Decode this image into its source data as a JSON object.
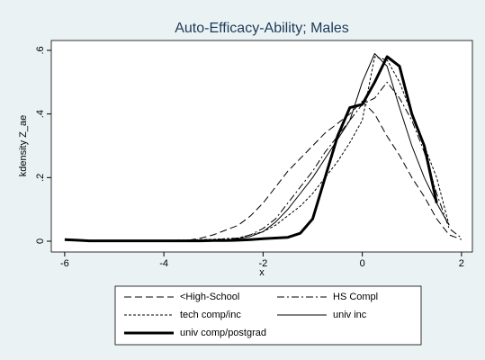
{
  "chart_data": {
    "type": "line",
    "title": "Auto-Efficacy-Ability; Males",
    "x_label": "x",
    "y_label": "kdensity Z_ae",
    "x": [
      -6,
      -5.75,
      -5.5,
      -5.25,
      -5,
      -4.75,
      -4.5,
      -4.25,
      -4,
      -3.75,
      -3.5,
      -3.25,
      -3,
      -2.75,
      -2.5,
      -2.25,
      -2,
      -1.75,
      -1.5,
      -1.25,
      -1,
      -0.75,
      -0.5,
      -0.25,
      0,
      0.25,
      0.5,
      0.75,
      1,
      1.25,
      1.5,
      1.75,
      2
    ],
    "series": [
      {
        "name": "<High-School",
        "color": "#000000",
        "dash": "8 4",
        "width": 1,
        "values": [
          null,
          null,
          null,
          null,
          null,
          null,
          null,
          null,
          null,
          null,
          0.003,
          0.01,
          0.02,
          0.035,
          0.05,
          0.08,
          0.12,
          0.17,
          0.22,
          0.26,
          0.3,
          0.34,
          0.37,
          0.4,
          0.44,
          0.4,
          0.33,
          0.27,
          0.2,
          0.14,
          0.07,
          0.02,
          0.005
        ]
      },
      {
        "name": "HS Compl",
        "color": "#000000",
        "dash": "8 3 2 3",
        "width": 1,
        "values": [
          null,
          null,
          null,
          null,
          null,
          null,
          null,
          null,
          null,
          null,
          0.003,
          0.004,
          0.005,
          0.007,
          0.01,
          0.02,
          0.04,
          0.07,
          0.12,
          0.17,
          0.22,
          0.28,
          0.33,
          0.38,
          0.43,
          0.45,
          0.5,
          0.45,
          0.38,
          0.28,
          0.15,
          0.04,
          0.01
        ]
      },
      {
        "name": "tech comp/inc",
        "color": "#000000",
        "dash": "3 2",
        "width": 1,
        "values": [
          null,
          null,
          null,
          null,
          null,
          null,
          null,
          null,
          0.002,
          0.003,
          0.004,
          0.005,
          0.006,
          0.008,
          0.01,
          0.02,
          0.03,
          0.05,
          0.08,
          0.11,
          0.15,
          0.2,
          0.25,
          0.31,
          0.38,
          0.58,
          0.57,
          0.5,
          0.4,
          0.3,
          0.2,
          0.05,
          null
        ]
      },
      {
        "name": "univ inc",
        "color": "#000000",
        "dash": "none",
        "width": 1,
        "values": [
          null,
          null,
          null,
          null,
          null,
          null,
          null,
          null,
          null,
          null,
          null,
          null,
          0.002,
          0.004,
          0.008,
          0.015,
          0.03,
          0.06,
          0.1,
          0.15,
          0.2,
          0.26,
          0.32,
          0.38,
          0.5,
          0.59,
          0.55,
          0.42,
          0.3,
          0.2,
          0.12,
          0.05,
          null
        ]
      },
      {
        "name": "univ comp/postgrad",
        "color": "#000000",
        "dash": "none",
        "width": 3,
        "values": [
          0.005,
          0.003,
          0.001,
          0.001,
          0.001,
          0.001,
          0.001,
          0.001,
          0.001,
          0.001,
          0.001,
          0.001,
          0.002,
          0.002,
          0.003,
          0.005,
          0.008,
          0.01,
          0.012,
          0.025,
          0.07,
          0.2,
          0.33,
          0.42,
          0.43,
          0.5,
          0.58,
          0.55,
          0.4,
          0.3,
          0.12,
          null,
          null
        ]
      }
    ],
    "xlim": [
      -6.27,
      2.22
    ],
    "ylim": [
      -0.034,
      0.631
    ],
    "xticks": [
      -6,
      -4,
      -2,
      0,
      2
    ],
    "yticks": [
      0,
      {
        "value": 0.2,
        "label": ".2"
      },
      {
        "value": 0.4,
        "label": ".4"
      },
      {
        "value": 0.6,
        "label": ".6"
      }
    ],
    "grid": false
  }
}
